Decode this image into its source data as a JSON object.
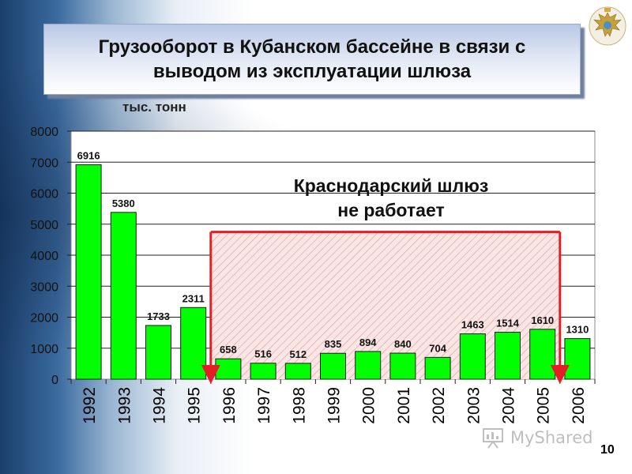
{
  "slide": {
    "title": "Грузооборот в Кубанском бассейне в связи с выводом из эксплуатации шлюза",
    "unit": "тыс. тонн",
    "note_line1": "Краснодарский шлюз",
    "note_line2": "не работает",
    "page_number": "10",
    "watermark_text": "MyShared",
    "emblem_icon": "double-headed-eagle-emblem-icon",
    "watermark_icon": "presentation-board-icon"
  },
  "chart_data": {
    "type": "bar",
    "categories": [
      "1992",
      "1993",
      "1994",
      "1995",
      "1996",
      "1997",
      "1998",
      "1999",
      "2000",
      "2001",
      "2002",
      "2003",
      "2004",
      "2005",
      "2006"
    ],
    "values": [
      6916,
      5380,
      1733,
      2311,
      658,
      516,
      512,
      835,
      894,
      840,
      704,
      1463,
      1514,
      1610,
      1310
    ],
    "data_labels": [
      "6916",
      "5380",
      "1733",
      "2311",
      "658",
      "516",
      "512",
      "835",
      "894",
      "840",
      "704",
      "1463",
      "1514",
      "1610",
      "1310"
    ],
    "ylim": [
      0,
      8000
    ],
    "yticks": [
      "0",
      "1000",
      "2000",
      "3000",
      "4000",
      "5000",
      "6000",
      "7000",
      "8000"
    ],
    "ylabel": "тыс. тонн",
    "xlabel": "",
    "grid": true,
    "legend": "none",
    "bar_color": "#00ff00",
    "highlight": {
      "from": "1996",
      "to": "2005",
      "color": "#e31e24",
      "label": "Краснодарский шлюз не работает"
    }
  }
}
